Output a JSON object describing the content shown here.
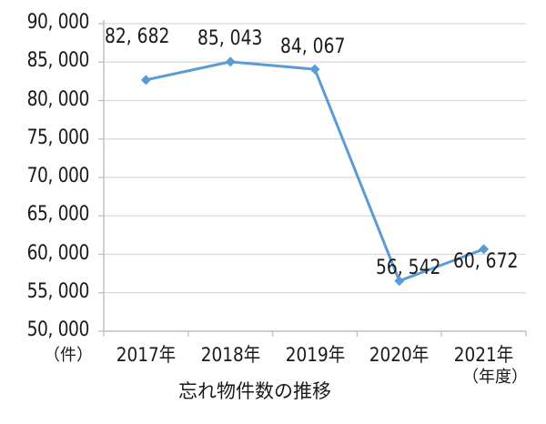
{
  "chart_data": {
    "type": "line",
    "title": "忘れ物件数の推移",
    "xlabel": "（年度）",
    "ylabel": "（件）",
    "categories": [
      "2017年",
      "2018年",
      "2019年",
      "2020年",
      "2021年"
    ],
    "series": [
      {
        "name": "忘れ物件数",
        "values": [
          82682,
          85043,
          84067,
          56542,
          60672
        ]
      }
    ],
    "data_labels": [
      "82, 682",
      "85, 043",
      "84, 067",
      "56, 542",
      "60, 672"
    ],
    "ylim": [
      50000,
      90000
    ],
    "yticks": [
      50000,
      55000,
      60000,
      65000,
      70000,
      75000,
      80000,
      85000,
      90000
    ],
    "ytick_labels": [
      "50, 000",
      "55, 000",
      "60, 000",
      "65, 000",
      "70, 000",
      "75, 000",
      "80, 000",
      "85, 000",
      "90, 000"
    ],
    "grid": true,
    "legend": "none",
    "line_color": "#5b9bd5",
    "marker": "diamond"
  }
}
